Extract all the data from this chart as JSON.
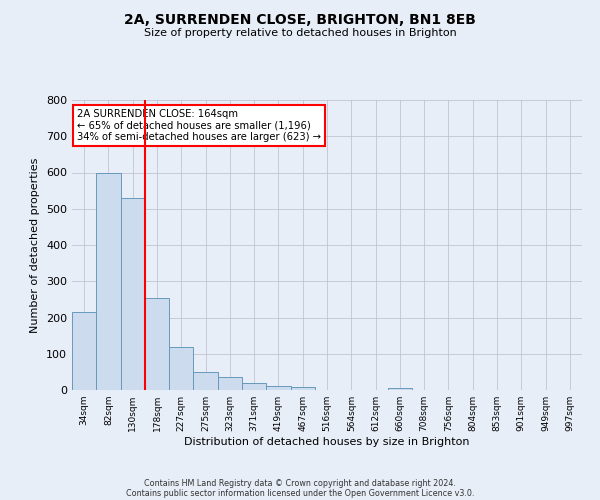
{
  "title": "2A, SURRENDEN CLOSE, BRIGHTON, BN1 8EB",
  "subtitle": "Size of property relative to detached houses in Brighton",
  "xlabel": "Distribution of detached houses by size in Brighton",
  "ylabel": "Number of detached properties",
  "bar_labels": [
    "34sqm",
    "82sqm",
    "130sqm",
    "178sqm",
    "227sqm",
    "275sqm",
    "323sqm",
    "371sqm",
    "419sqm",
    "467sqm",
    "516sqm",
    "564sqm",
    "612sqm",
    "660sqm",
    "708sqm",
    "756sqm",
    "804sqm",
    "853sqm",
    "901sqm",
    "949sqm",
    "997sqm"
  ],
  "bar_values": [
    215,
    600,
    530,
    255,
    118,
    50,
    35,
    20,
    12,
    8,
    0,
    0,
    0,
    5,
    0,
    0,
    0,
    0,
    0,
    0,
    0
  ],
  "bar_color": "#ccdcee",
  "bar_edge_color": "#6699bb",
  "ylim": [
    0,
    800
  ],
  "yticks": [
    0,
    100,
    200,
    300,
    400,
    500,
    600,
    700,
    800
  ],
  "property_line_color": "red",
  "annotation_text": "2A SURRENDEN CLOSE: 164sqm\n← 65% of detached houses are smaller (1,196)\n34% of semi-detached houses are larger (623) →",
  "annotation_box_color": "white",
  "annotation_box_edgecolor": "red",
  "footer_line1": "Contains HM Land Registry data © Crown copyright and database right 2024.",
  "footer_line2": "Contains public sector information licensed under the Open Government Licence v3.0.",
  "background_color": "#e8eef8",
  "grid_color": "#bbbbcc"
}
